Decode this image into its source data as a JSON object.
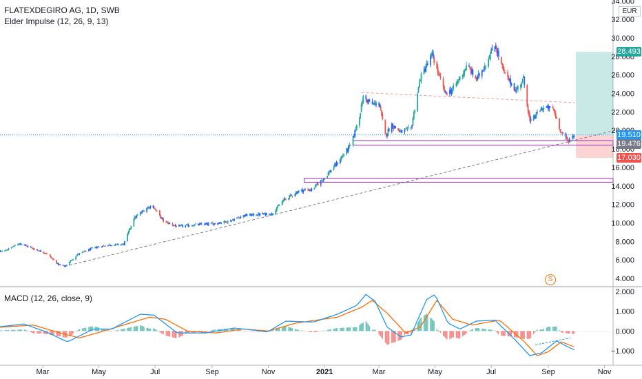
{
  "header": {
    "symbol_line": "FLATEXDEGIRO AG, 1D, SWB",
    "indicator_line": "Elder Impulse (12, 26, 9, 13)"
  },
  "macd_header": "MACD (12, 26, close, 9)",
  "currency": "EUR",
  "event_icon": "S",
  "colors": {
    "up": "#26a69a",
    "down": "#ef5350",
    "neutral": "#2962ff",
    "macd": "#2196f3",
    "signal": "#ff6d00",
    "level_box": "#9c27b0",
    "target_zone": "#26a69a",
    "stop_zone": "#ef5350"
  },
  "price_badges": [
    {
      "id": "target",
      "text": "28.493",
      "color": "#26a69a"
    },
    {
      "id": "current",
      "text": "19.510",
      "color": "#2196f3"
    },
    {
      "id": "entry",
      "text": "19.476",
      "color": "#787b86"
    },
    {
      "id": "stop",
      "text": "17.030",
      "color": "#ef5350"
    }
  ],
  "chart_data": [
    {
      "type": "candlestick",
      "title": "FLATEXDEGIRO AG, 1D, SWB",
      "x_tick_labels": [
        "Mar",
        "May",
        "Jul",
        "Sep",
        "Nov",
        "2021",
        "Mar",
        "May",
        "Jul",
        "Sep",
        "Nov"
      ],
      "y_tick_labels": [
        "34.000",
        "32.000",
        "30.000",
        "28.000",
        "26.000",
        "24.000",
        "22.000",
        "20.000",
        "18.000",
        "16.000",
        "14.000",
        "12.000",
        "10.000",
        "8.000",
        "6.000",
        "4.000"
      ],
      "ylim": [
        3.5,
        34.3
      ],
      "close_anchors": [
        [
          "2020-01-01",
          6.6
        ],
        [
          "2020-01-20",
          7.0
        ],
        [
          "2020-02-05",
          7.8
        ],
        [
          "2020-02-20",
          7.2
        ],
        [
          "2020-03-05",
          6.7
        ],
        [
          "2020-03-18",
          5.5
        ],
        [
          "2020-03-25",
          5.3
        ],
        [
          "2020-04-08",
          6.6
        ],
        [
          "2020-04-25",
          7.3
        ],
        [
          "2020-05-10",
          7.6
        ],
        [
          "2020-05-28",
          7.7
        ],
        [
          "2020-06-08",
          10.5
        ],
        [
          "2020-06-22",
          11.6
        ],
        [
          "2020-06-28",
          11.9
        ],
        [
          "2020-07-10",
          10.2
        ],
        [
          "2020-07-25",
          9.6
        ],
        [
          "2020-08-15",
          9.8
        ],
        [
          "2020-09-01",
          9.9
        ],
        [
          "2020-09-20",
          10.2
        ],
        [
          "2020-10-05",
          10.8
        ],
        [
          "2020-10-20",
          10.9
        ],
        [
          "2020-11-05",
          11.0
        ],
        [
          "2020-11-18",
          12.5
        ],
        [
          "2020-12-05",
          13.5
        ],
        [
          "2020-12-18",
          13.6
        ],
        [
          "2021-01-01",
          14.9
        ],
        [
          "2021-01-15",
          16.5
        ],
        [
          "2021-01-30",
          18.5
        ],
        [
          "2021-02-08",
          21.6
        ],
        [
          "2021-02-12",
          23.6
        ],
        [
          "2021-02-22",
          22.8
        ],
        [
          "2021-03-01",
          23.0
        ],
        [
          "2021-03-08",
          19.5
        ],
        [
          "2021-03-15",
          20.6
        ],
        [
          "2021-03-25",
          19.8
        ],
        [
          "2021-04-05",
          20.2
        ],
        [
          "2021-04-15",
          25.7
        ],
        [
          "2021-04-28",
          28.2
        ],
        [
          "2021-05-05",
          26.0
        ],
        [
          "2021-05-12",
          24.0
        ],
        [
          "2021-05-20",
          24.4
        ],
        [
          "2021-06-05",
          27.0
        ],
        [
          "2021-06-15",
          25.5
        ],
        [
          "2021-06-25",
          27.2
        ],
        [
          "2021-07-05",
          29.3
        ],
        [
          "2021-07-15",
          26.2
        ],
        [
          "2021-07-28",
          24.3
        ],
        [
          "2021-08-05",
          25.6
        ],
        [
          "2021-08-12",
          20.9
        ],
        [
          "2021-08-25",
          22.4
        ],
        [
          "2021-09-06",
          22.4
        ],
        [
          "2021-09-15",
          19.8
        ],
        [
          "2021-09-22",
          18.9
        ],
        [
          "2021-09-29",
          19.5
        ]
      ],
      "annotations": {
        "trendline": {
          "from": [
            "2020-03-25",
            5.3
          ],
          "to": [
            "2021-11-20",
            20.2
          ],
          "style": "dashed"
        },
        "upper_dashed_line": {
          "from": [
            "2021-02-10",
            24.1
          ],
          "to": [
            "2021-09-30",
            23.0
          ]
        },
        "level_box_1": {
          "x_from": "2021-02-01",
          "x_to": "2021-11-30",
          "y_from": 18.4,
          "y_to": 18.9
        },
        "level_box_2": {
          "x_from": "2020-12-10",
          "x_to": "2021-11-30",
          "y_from": 14.4,
          "y_to": 14.8
        },
        "target_zone": {
          "x_from": "2021-10-01",
          "x_to": "2021-11-30",
          "y_from": 19.476,
          "y_to": 28.493
        },
        "stop_zone": {
          "x_from": "2021-10-01",
          "x_to": "2021-11-30",
          "y_from": 17.03,
          "y_to": 19.476
        },
        "current_price_line": 19.51
      }
    },
    {
      "type": "line+histogram",
      "title": "MACD (12, 26, close, 9)",
      "y_tick_labels": [
        "2.000",
        "1.000",
        "0.000",
        "−1.000"
      ],
      "ylim": [
        -1.55,
        2.1
      ],
      "macd_anchors": [
        [
          "2020-01-01",
          0.15
        ],
        [
          "2020-02-10",
          0.35
        ],
        [
          "2020-03-05",
          -0.05
        ],
        [
          "2020-03-28",
          -0.55
        ],
        [
          "2020-04-25",
          0.1
        ],
        [
          "2020-05-15",
          0.1
        ],
        [
          "2020-06-15",
          0.85
        ],
        [
          "2020-06-30",
          0.8
        ],
        [
          "2020-07-25",
          -0.1
        ],
        [
          "2020-08-25",
          -0.1
        ],
        [
          "2020-09-25",
          0.15
        ],
        [
          "2020-10-15",
          0.05
        ],
        [
          "2020-10-31",
          -0.05
        ],
        [
          "2020-11-20",
          0.5
        ],
        [
          "2020-12-20",
          0.45
        ],
        [
          "2021-01-15",
          0.85
        ],
        [
          "2021-02-05",
          1.3
        ],
        [
          "2021-02-15",
          1.85
        ],
        [
          "2021-02-25",
          1.5
        ],
        [
          "2021-03-10",
          0.2
        ],
        [
          "2021-03-25",
          -0.3
        ],
        [
          "2021-04-05",
          -0.2
        ],
        [
          "2021-04-22",
          1.6
        ],
        [
          "2021-05-01",
          1.85
        ],
        [
          "2021-05-15",
          0.4
        ],
        [
          "2021-05-28",
          0.1
        ],
        [
          "2021-06-15",
          0.5
        ],
        [
          "2021-07-05",
          0.55
        ],
        [
          "2021-07-25",
          -0.35
        ],
        [
          "2021-08-12",
          -1.25
        ],
        [
          "2021-08-25",
          -1.1
        ],
        [
          "2021-09-10",
          -0.5
        ],
        [
          "2021-09-20",
          -0.75
        ],
        [
          "2021-09-29",
          -0.95
        ]
      ],
      "signal_anchors": [
        [
          "2020-01-01",
          0.15
        ],
        [
          "2020-02-20",
          0.3
        ],
        [
          "2020-03-20",
          -0.1
        ],
        [
          "2020-04-10",
          -0.35
        ],
        [
          "2020-05-10",
          0.05
        ],
        [
          "2020-06-25",
          0.7
        ],
        [
          "2020-07-12",
          0.6
        ],
        [
          "2020-08-05",
          0.0
        ],
        [
          "2020-09-05",
          -0.1
        ],
        [
          "2020-10-05",
          0.1
        ],
        [
          "2020-11-01",
          0.0
        ],
        [
          "2020-12-01",
          0.4
        ],
        [
          "2021-01-15",
          0.7
        ],
        [
          "2021-02-10",
          1.2
        ],
        [
          "2021-02-22",
          1.55
        ],
        [
          "2021-03-10",
          0.9
        ],
        [
          "2021-03-30",
          -0.1
        ],
        [
          "2021-04-15",
          0.2
        ],
        [
          "2021-05-03",
          1.55
        ],
        [
          "2021-05-20",
          0.6
        ],
        [
          "2021-06-10",
          0.3
        ],
        [
          "2021-07-10",
          0.55
        ],
        [
          "2021-08-05",
          -0.5
        ],
        [
          "2021-08-20",
          -1.25
        ],
        [
          "2021-09-01",
          -1.05
        ],
        [
          "2021-09-15",
          -0.55
        ],
        [
          "2021-09-29",
          -0.8
        ]
      ],
      "histogram_note": "histogram = macd - signal"
    }
  ]
}
